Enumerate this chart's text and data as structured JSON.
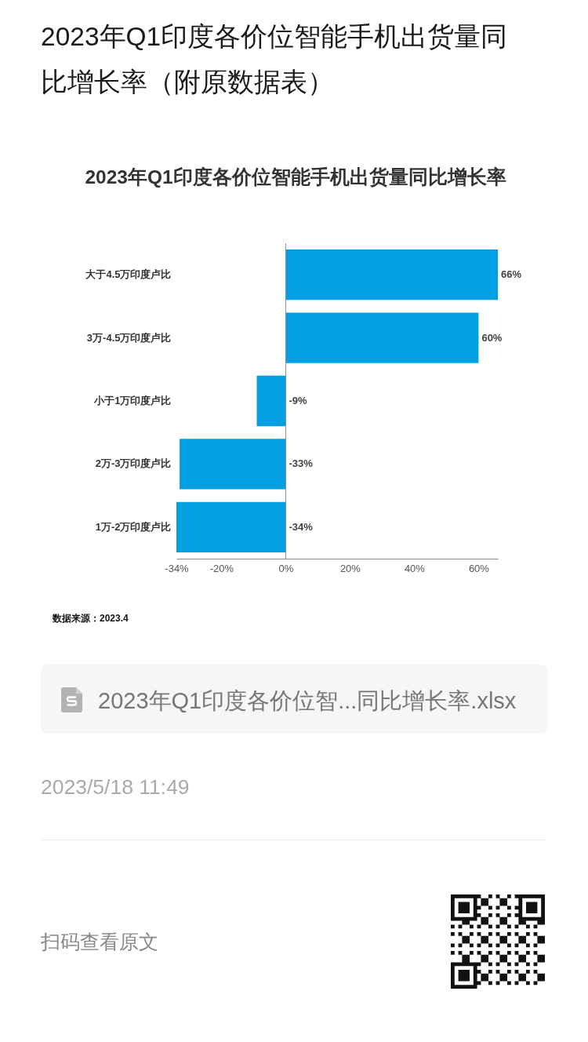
{
  "chart_data": {
    "type": "bar",
    "orientation": "horizontal",
    "title": "2023年Q1印度各价位智能手机出货量同比增长率",
    "categories": [
      "大于4.5万印度卢比",
      "3万-4.5万印度卢比",
      "小于1万印度卢比",
      "2万-3万印度卢比",
      "1万-2万印度卢比"
    ],
    "values": [
      66,
      60,
      -9,
      -33,
      -34
    ],
    "color": "#039fe2",
    "value_labels": [
      "66%",
      "60%",
      "-9%",
      "-33%",
      "-34%"
    ],
    "xlim": [
      -34,
      66
    ],
    "xticks": [
      {
        "value": -34,
        "label": "-34%"
      },
      {
        "value": -20,
        "label": "-20%"
      },
      {
        "value": 0,
        "label": "0%"
      },
      {
        "value": 20,
        "label": "20%"
      },
      {
        "value": 40,
        "label": "40%"
      },
      {
        "value": 60,
        "label": "60%"
      }
    ],
    "grid": false,
    "ref_lines": [
      {
        "axis": "x",
        "value": 0,
        "color": "#8c8c8c"
      }
    ],
    "annotations": [
      "2023年Q1印度各价位智能手机出货量同比增长率（附原数据表）",
      "数据来源：2023.4",
      "2023年Q1印度各价位智...同比增长率.xlsx",
      "2023/5/18 11:49",
      "扫码查看原文"
    ]
  }
}
